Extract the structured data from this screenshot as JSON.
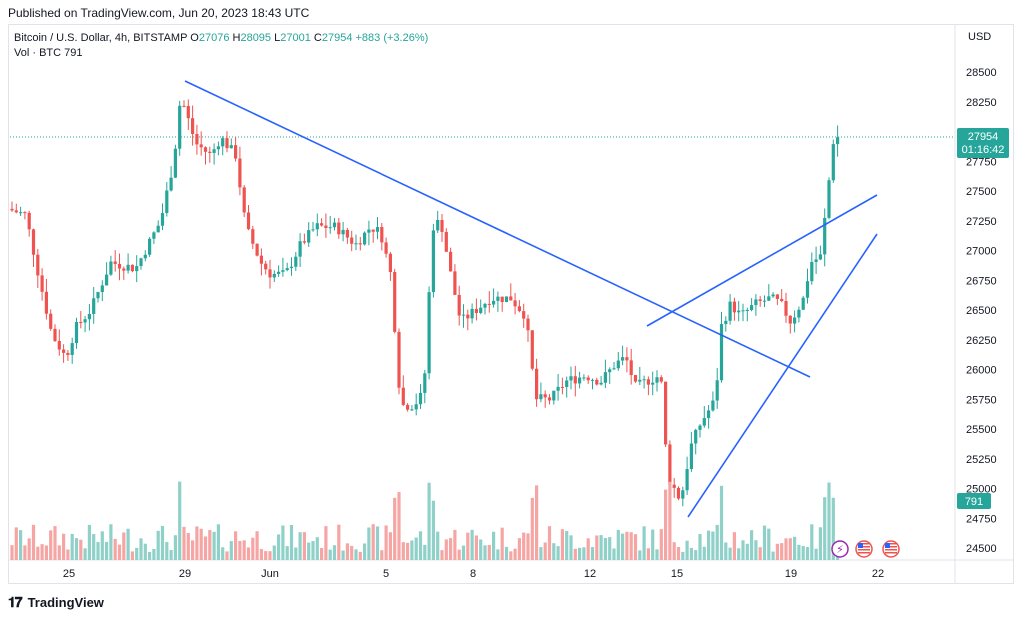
{
  "header": {
    "published": "Published on TradingView.com, Jun 20, 2023 18:43 UTC"
  },
  "legend": {
    "symbol": "Bitcoin / U.S. Dollar, 4h, BITSTAMP",
    "o_label": "O",
    "o": "27076",
    "h_label": "H",
    "h": "28095",
    "l_label": "L",
    "l": "27001",
    "c_label": "C",
    "c": "27954",
    "change": "+883 (+3.26%)",
    "vol_label": "Vol · BTC",
    "vol": "791"
  },
  "axis": {
    "currency": "USD"
  },
  "price_badge": {
    "price": "27954",
    "countdown": "01:16:42"
  },
  "volume_badge": "791",
  "footer": {
    "brand": "TradingView"
  },
  "colors": {
    "up": "#26a69a",
    "down": "#ef5350",
    "trendline": "#2962ff",
    "up_vol": "#8fd1c9",
    "down_vol": "#f5a6a4"
  },
  "icons": [
    "lightning-icon",
    "us-flag-icon",
    "us-flag-icon"
  ],
  "chart_data": {
    "type": "candlestick",
    "timeframe": "4h",
    "ylim": [
      24300,
      28700
    ],
    "yticks": [
      24500,
      24750,
      25000,
      25250,
      25500,
      25750,
      26000,
      26250,
      26500,
      26750,
      27000,
      27250,
      27500,
      27750,
      28000,
      28250,
      28500
    ],
    "xticks": [
      "25",
      "29",
      "Jun",
      "5",
      "8",
      "12",
      "15",
      "19",
      "22"
    ],
    "last_close": 27954,
    "key_points": [
      {
        "label": "May 29 high",
        "price": 28440
      },
      {
        "label": "May 25 low",
        "price": 25880
      },
      {
        "label": "Jun 6 low",
        "price": 25350
      },
      {
        "label": "Jun 15 low",
        "price": 24800
      },
      {
        "label": "Jun 20 high",
        "price": 28095
      }
    ],
    "trendlines": [
      {
        "name": "descending resistance",
        "from": {
          "date": "May 29",
          "price": 28420
        },
        "to": {
          "date": "Jun 19",
          "price": 25940
        }
      },
      {
        "name": "rising upper",
        "from": {
          "date": "Jun 14",
          "price": 26380
        },
        "to": {
          "date": "Jun 22",
          "price": 27470
        }
      },
      {
        "name": "rising lower",
        "from": {
          "date": "Jun 15",
          "price": 24780
        },
        "to": {
          "date": "Jun 22",
          "price": 27130
        }
      }
    ]
  }
}
